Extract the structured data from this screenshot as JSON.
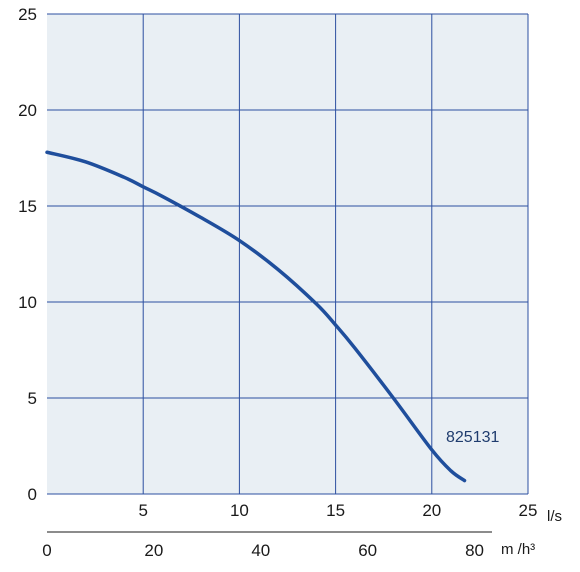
{
  "chart_data": {
    "type": "line",
    "title": "",
    "xlabel": "l/s",
    "x2label": "m /h³",
    "ylabel": "",
    "xlim": [
      0,
      25
    ],
    "ylim": [
      0,
      25
    ],
    "x_ticks": [
      "5",
      "10",
      "15",
      "20",
      "25"
    ],
    "x2_ticks": [
      "0",
      "20",
      "40",
      "60",
      "80"
    ],
    "y_ticks": [
      "0",
      "5",
      "10",
      "15",
      "20",
      "25"
    ],
    "grid": true,
    "series": [
      {
        "name": "825131",
        "x": [
          0,
          2,
          4,
          5,
          6,
          8,
          10,
          12,
          14,
          15,
          16,
          18,
          20,
          21,
          21.7
        ],
        "y": [
          17.8,
          17.3,
          16.5,
          16.0,
          15.5,
          14.4,
          13.2,
          11.7,
          9.9,
          8.8,
          7.6,
          5.0,
          2.3,
          1.2,
          0.7
        ]
      }
    ],
    "colors": {
      "line": "#1f4e9c",
      "grid": "#2c4fa0",
      "plot_bg": "#e9eff4"
    }
  }
}
